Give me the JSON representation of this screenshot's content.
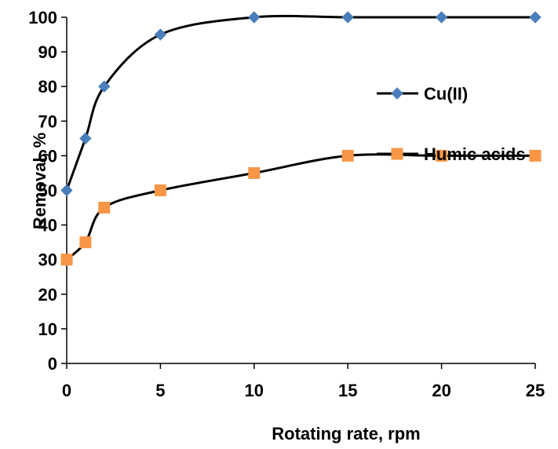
{
  "chart_data": {
    "type": "line",
    "xlabel": "Rotating rate, rpm",
    "ylabel": "Removal, %",
    "x": [
      0,
      1,
      2,
      5,
      10,
      15,
      20,
      25
    ],
    "xticks": [
      0,
      5,
      10,
      15,
      20,
      25
    ],
    "xlim": [
      0,
      25
    ],
    "ylim": [
      0,
      100
    ],
    "yticks": [
      0,
      10,
      20,
      30,
      40,
      50,
      60,
      70,
      80,
      90,
      100
    ],
    "grid": false,
    "legend_position": "right",
    "series": [
      {
        "name": "Cu(II)",
        "marker": "diamond",
        "marker_color": "#4a7ebb",
        "line_color": "#000000",
        "values": [
          50,
          65,
          80,
          95,
          100,
          100,
          100,
          100
        ]
      },
      {
        "name": "Humic acids",
        "marker": "square",
        "marker_color": "#f79646",
        "line_color": "#000000",
        "values": [
          30,
          35,
          45,
          50,
          55,
          60,
          60,
          60
        ]
      }
    ]
  }
}
